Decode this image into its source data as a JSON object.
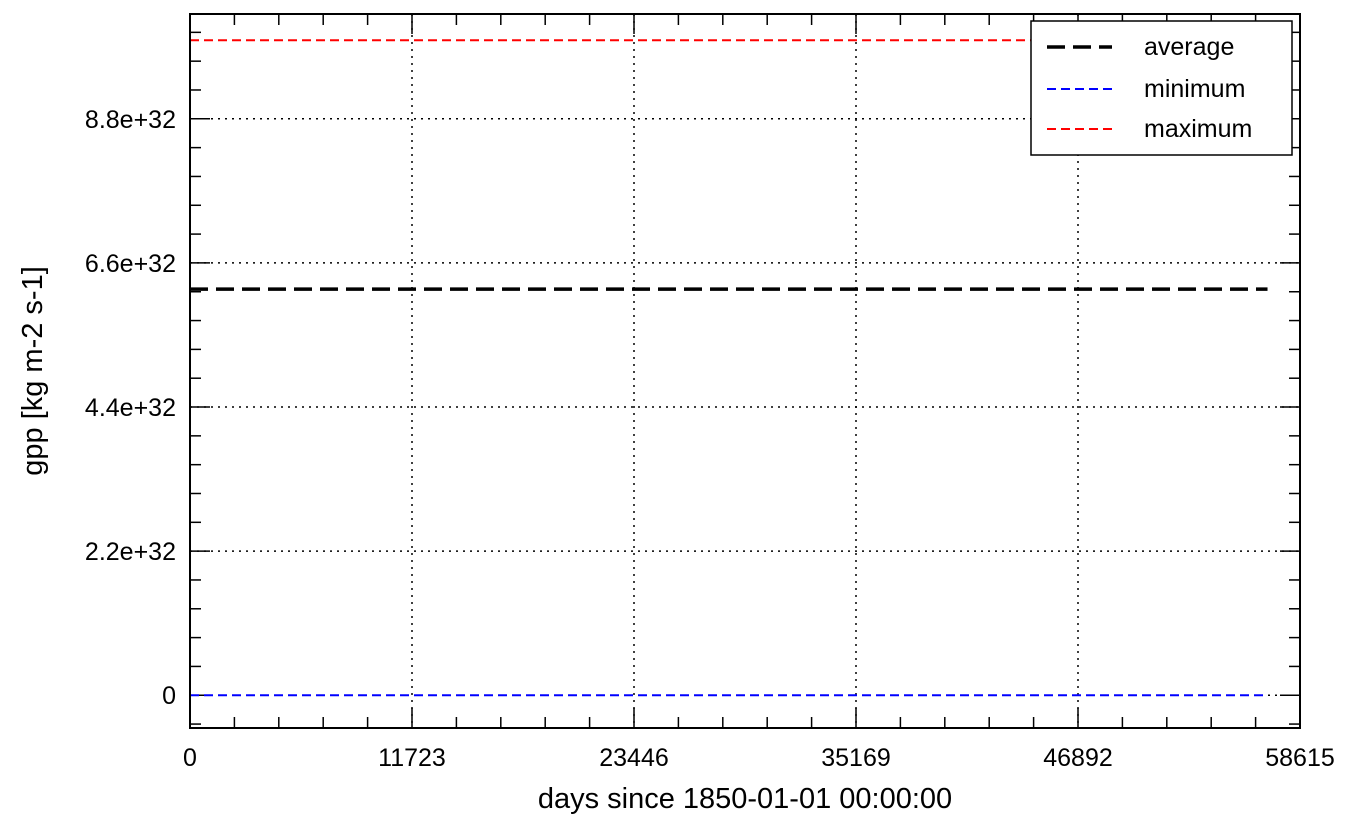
{
  "chart_data": {
    "type": "line",
    "xlabel": "days since 1850-01-01 00:00:00",
    "ylabel": "gpp [kg m-2 s-1]",
    "xlim": [
      0,
      58615
    ],
    "ylim": [
      -5e+31,
      1.04e+33
    ],
    "x_ticks": [
      0,
      11723,
      23446,
      35169,
      46892,
      58615
    ],
    "x_tick_labels": [
      "0",
      "11723",
      "23446",
      "35169",
      "46892",
      "58615"
    ],
    "y_ticks": [
      0,
      2.2e+32,
      4.4e+32,
      6.6e+32,
      8.8e+32
    ],
    "y_tick_labels": [
      "0",
      "2.2e+32",
      "4.4e+32",
      "6.6e+32",
      "8.8e+32"
    ],
    "grid": true,
    "legend_position": "top-right",
    "x": [
      0,
      56900
    ],
    "series": [
      {
        "name": "average",
        "values": [
          6.2e+32,
          6.2e+32
        ],
        "color": "#000000",
        "style": "long-dash"
      },
      {
        "name": "minimum",
        "values": [
          0,
          0
        ],
        "color": "#0000ff",
        "style": "dash"
      },
      {
        "name": "maximum",
        "values": [
          1e+33,
          1e+33
        ],
        "color": "#ff0000",
        "style": "dash"
      }
    ]
  }
}
